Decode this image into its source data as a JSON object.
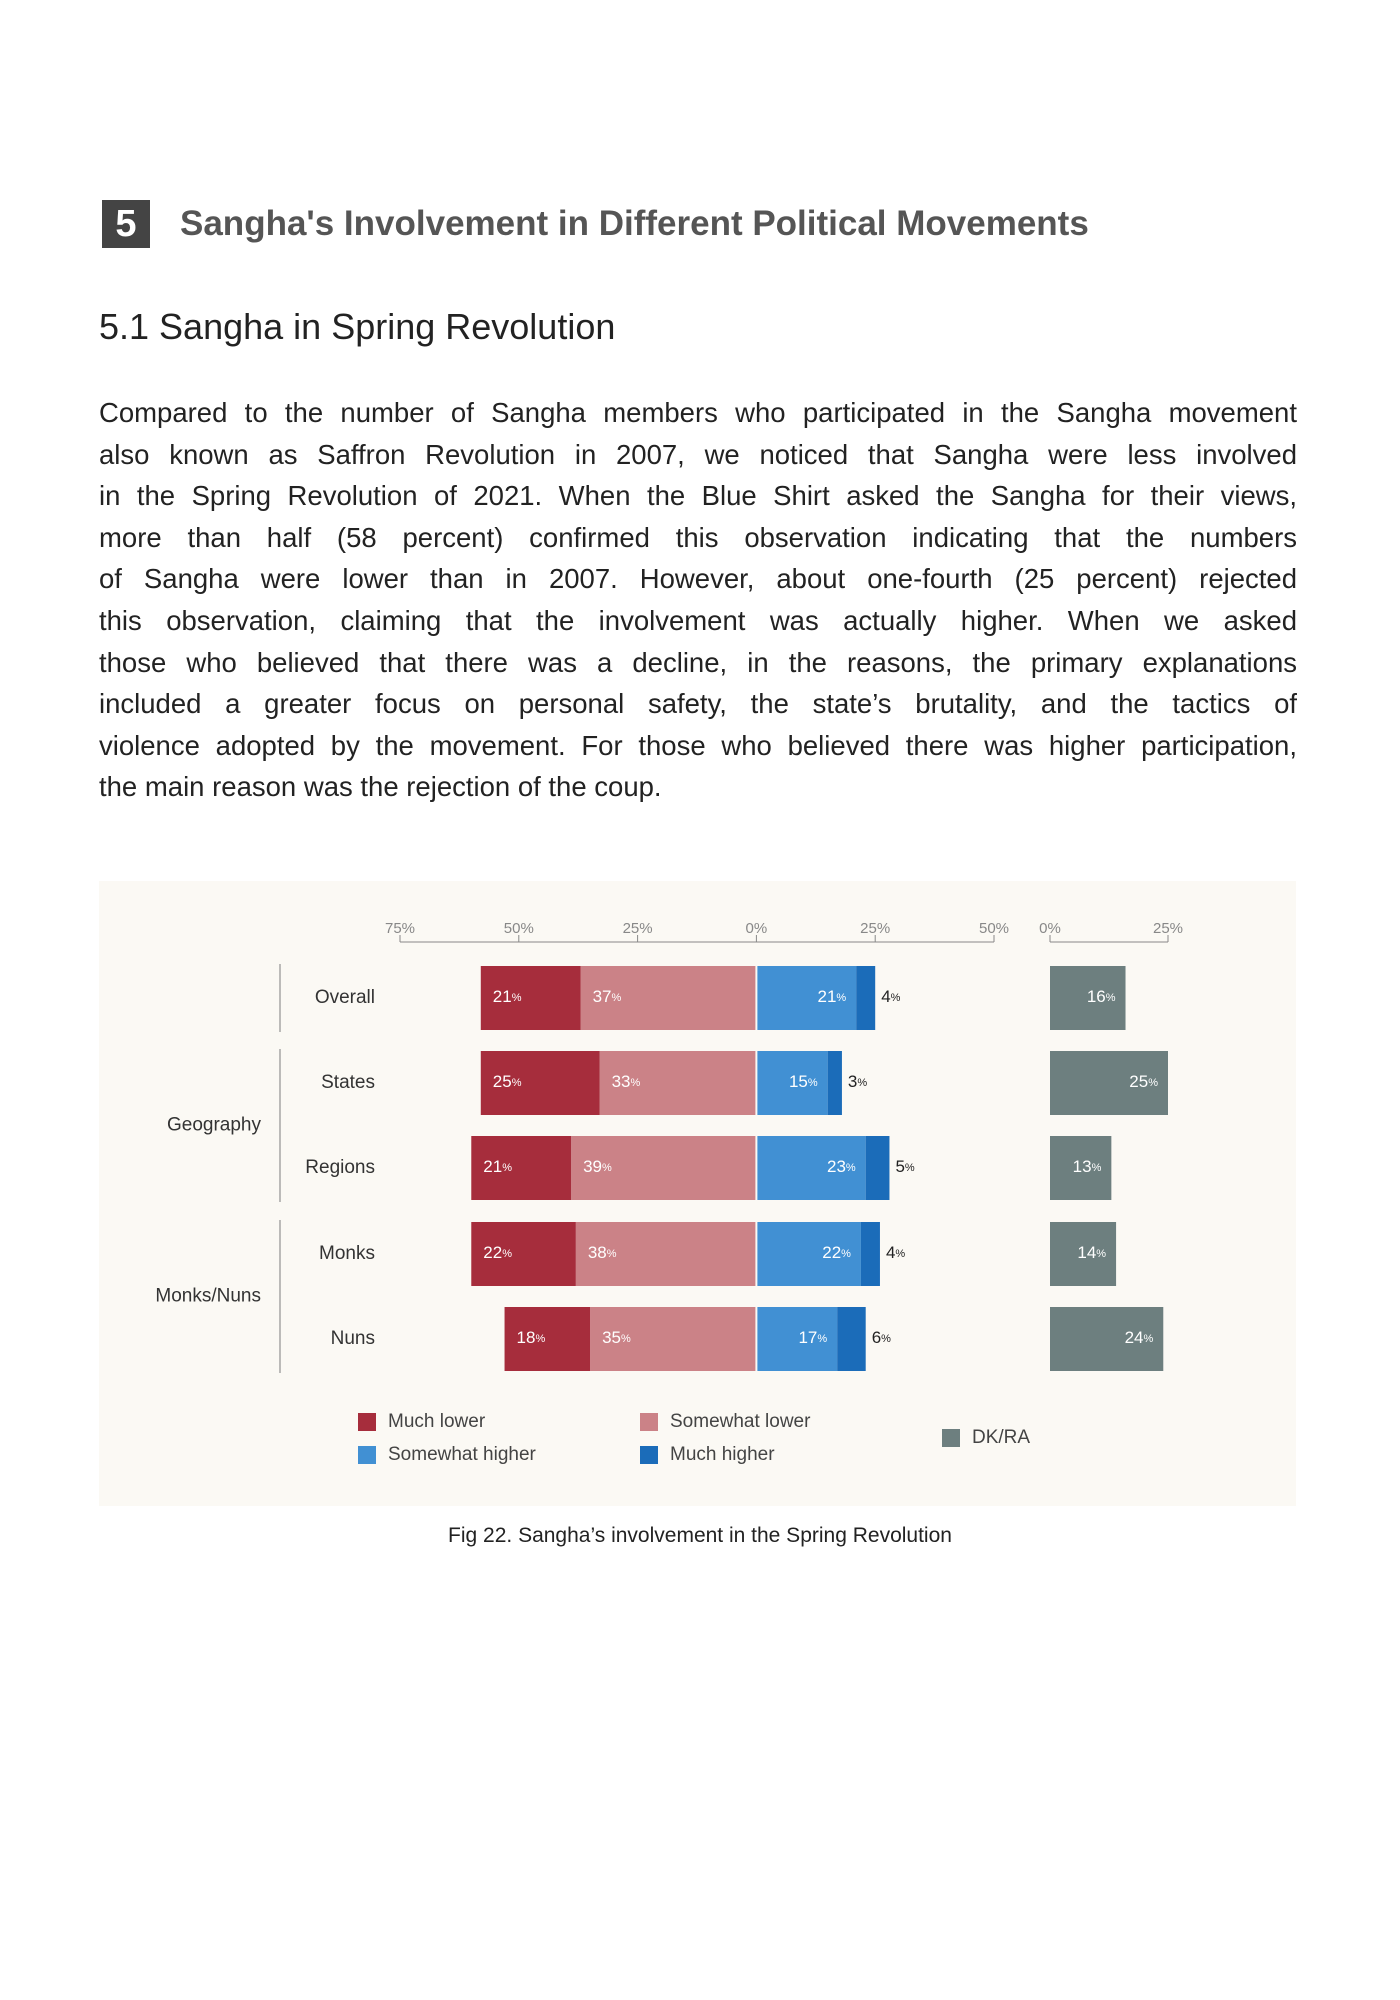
{
  "section": {
    "number": "5",
    "title": "Sangha's Involvement in Different Political Movements"
  },
  "subsection": "5.1 Sangha in Spring Revolution",
  "paragraph": [
    "Compared to the number of Sangha members who participated in the Sangha movement",
    "also known as Saffron Revolution in 2007, we noticed that Sangha were less involved",
    "in the Spring Revolution of 2021. When the Blue Shirt asked the Sangha for their views,",
    "more than half (58 percent) confirmed this observation indicating that the numbers",
    "of Sangha were lower than in 2007. However, about one-fourth (25 percent) rejected",
    "this observation, claiming that the involvement was actually higher. When we asked",
    "those who believed that there was a decline, in the reasons, the primary explanations",
    "included a greater focus on personal safety, the state’s brutality, and the tactics of",
    "violence adopted by the movement. For those who believed there was higher participation,",
    "the main reason was the rejection of the coup."
  ],
  "chart_data": {
    "type": "diverging-bar",
    "categories": [
      "Overall",
      "States",
      "Regions",
      "Monks",
      "Nuns"
    ],
    "category_groups": [
      null,
      "Geography",
      "Geography",
      "Monks/Nuns",
      "Monks/Nuns"
    ],
    "series": [
      {
        "name": "Much lower",
        "color": "#a62d3c",
        "values": [
          21,
          25,
          21,
          22,
          18
        ],
        "value_labels": [
          "21%",
          "25%",
          "21%",
          "22%",
          "18%"
        ]
      },
      {
        "name": "Somewhat lower",
        "color": "#cb8287",
        "values": [
          37,
          33,
          39,
          38,
          35
        ],
        "value_labels": [
          "37%",
          "33%",
          "39%",
          "38%",
          "35%"
        ]
      },
      {
        "name": "Somewhat higher",
        "color": "#4190d3",
        "values": [
          21,
          15,
          23,
          22,
          17
        ],
        "value_labels": [
          "21%",
          "15%",
          "23%",
          "22%",
          "17%"
        ]
      },
      {
        "name": "Much higher",
        "color": "#1b6cb9",
        "values": [
          4,
          3,
          5,
          4,
          6
        ],
        "value_labels": [
          "4%",
          "3%",
          "5%",
          "4%",
          "6%"
        ]
      },
      {
        "name": "DK/RA",
        "color": "#6d7f7f",
        "axis": "x2",
        "values": [
          16,
          25,
          13,
          14,
          24
        ],
        "value_labels": [
          "16%",
          "25%",
          "13%",
          "14%",
          "24%"
        ]
      }
    ],
    "xlim": [
      -75,
      50
    ],
    "xticks": [
      {
        "value": -75,
        "label": "75%"
      },
      {
        "value": -50,
        "label": "50%"
      },
      {
        "value": -25,
        "label": "25%"
      },
      {
        "value": 0,
        "label": "0%"
      },
      {
        "value": 25,
        "label": "25%"
      },
      {
        "value": 50,
        "label": "50%"
      }
    ],
    "x2lim": [
      0,
      25
    ],
    "x2ticks": [
      {
        "value": 0,
        "label": "0%"
      },
      {
        "value": 25,
        "label": "25%"
      }
    ]
  },
  "caption": "Fig 22. Sangha’s involvement in the Spring Revolution"
}
